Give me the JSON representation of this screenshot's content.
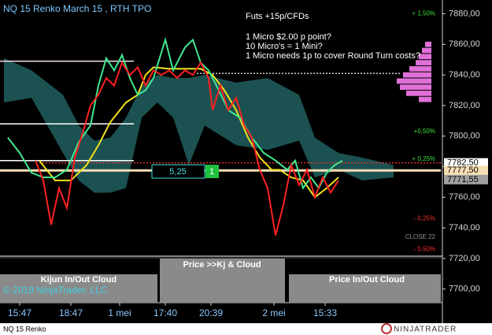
{
  "chart_data": {
    "type": "line",
    "title": "NQ 15 Renko March 15 , RTH TPO",
    "annotations": [
      "Futs +15p/CFDs",
      "1 Micro $2.00 p point?",
      "10 Micro's = 1 Mini?",
      "1 Micro needs 1p to cover Round Turn costs?"
    ],
    "xlim": [
      0,
      112
    ],
    "xticks": [
      {
        "value": 5,
        "label": "15:47"
      },
      {
        "value": 18,
        "label": "18:47"
      },
      {
        "value": 30.4,
        "label": "1 mei"
      },
      {
        "value": 42,
        "label": "17:40"
      },
      {
        "value": 53.6,
        "label": "20:39"
      },
      {
        "value": 69.6,
        "label": "2 mei"
      },
      {
        "value": 82.6,
        "label": "15:33"
      }
    ],
    "ylim": [
      7689,
      7889
    ],
    "yticks": [
      {
        "value": 7700,
        "label": "7700,00"
      },
      {
        "value": 7720,
        "label": "7720,00"
      },
      {
        "value": 7740,
        "label": "7740,00"
      },
      {
        "value": 7760,
        "label": "7760,00"
      },
      {
        "value": 7780,
        "label": "7780,00"
      },
      {
        "value": 7800,
        "label": "7800,00"
      },
      {
        "value": 7820,
        "label": "7820,00"
      },
      {
        "value": 7840,
        "label": "7840,00"
      },
      {
        "value": 7860,
        "label": "7860,00"
      },
      {
        "value": 7880,
        "label": "7880,00"
      }
    ],
    "cloud": {
      "color": "#1f5a5a",
      "x": [
        1,
        8,
        16,
        20,
        24,
        28,
        32,
        36,
        40,
        44,
        48,
        52,
        60,
        68,
        76,
        80,
        86,
        92,
        100
      ],
      "upper": [
        7851,
        7843,
        7827,
        7807,
        7797,
        7799,
        7812,
        7833,
        7840,
        7838,
        7838,
        7840,
        7835,
        7838,
        7827,
        7799,
        7789,
        7786,
        7781
      ],
      "lower": [
        7822,
        7825,
        7789,
        7771,
        7763,
        7763,
        7766,
        7812,
        7822,
        7812,
        7781,
        7807,
        7794,
        7791,
        7797,
        7773,
        7778,
        7771,
        7773
      ]
    },
    "profile": {
      "color": "#e070d8",
      "levels": [
        7860,
        7856,
        7852,
        7848,
        7844,
        7840,
        7836,
        7832,
        7828,
        7824
      ],
      "sizes": [
        2,
        3,
        4,
        5,
        7,
        9,
        11,
        10,
        8,
        4
      ]
    },
    "hlines": [
      {
        "value": 7849,
        "x": [
          0,
          34
        ],
        "color": "#f4e0ee",
        "dash": false
      },
      {
        "value": 7808,
        "x": [
          0,
          34
        ],
        "color": "#ffffff",
        "dash": false
      },
      {
        "value": 7784,
        "x": [
          0,
          34
        ],
        "color": "#ffffff",
        "dash": false
      },
      {
        "value": 7841,
        "x": [
          50,
          102
        ],
        "color": "#ffffff",
        "dash": true
      },
      {
        "value": 7782.5,
        "x": [
          10,
          112
        ],
        "color": "#ff3030",
        "dash": true
      },
      {
        "value": 7777.5,
        "x": [
          0,
          112
        ],
        "color": "#f5deb3",
        "dash": false
      }
    ],
    "series": [
      {
        "color": "#f0e020",
        "x": [
          10,
          14,
          18,
          22,
          25,
          28,
          32,
          35,
          37,
          39,
          43,
          47,
          51,
          54,
          57,
          60,
          63,
          66,
          69,
          71,
          74,
          77,
          80,
          83,
          86
        ],
        "values": [
          7784,
          7771,
          7771,
          7781,
          7794,
          7809,
          7822,
          7827,
          7840,
          7845,
          7844,
          7844,
          7844,
          7840,
          7830,
          7817,
          7799,
          7786,
          7778,
          7778,
          7773,
          7771,
          7760,
          7766,
          7773
        ]
      },
      {
        "color": "#40e890",
        "x": [
          2,
          5,
          8,
          11,
          14,
          17,
          20,
          23,
          25,
          27,
          29,
          31,
          33,
          35,
          37,
          39,
          42,
          44,
          47,
          49,
          51,
          53,
          55,
          58,
          61,
          64,
          67,
          70,
          73,
          75,
          77,
          79,
          81,
          83,
          85,
          87
        ],
        "values": [
          7799,
          7789,
          7776,
          7773,
          7773,
          7778,
          7796,
          7807,
          7833,
          7851,
          7843,
          7853,
          7838,
          7827,
          7830,
          7838,
          7863,
          7843,
          7858,
          7863,
          7848,
          7843,
          7833,
          7817,
          7812,
          7799,
          7789,
          7784,
          7778,
          7784,
          7766,
          7773,
          7766,
          7776,
          7781,
          7784
        ]
      },
      {
        "color": "#ff2020",
        "x": [
          9,
          11,
          13,
          15,
          17,
          19,
          21,
          23,
          25,
          27,
          29,
          31,
          33,
          35,
          37,
          39,
          41,
          43,
          45,
          47,
          49,
          51,
          53,
          54,
          56,
          58,
          60,
          62,
          64,
          66,
          68,
          70,
          72,
          74,
          76,
          78,
          80,
          82,
          84,
          86
        ],
        "values": [
          7784,
          7771,
          7742,
          7766,
          7753,
          7786,
          7802,
          7820,
          7827,
          7838,
          7833,
          7848,
          7840,
          7845,
          7833,
          7843,
          7840,
          7843,
          7838,
          7843,
          7840,
          7848,
          7838,
          7817,
          7833,
          7817,
          7825,
          7807,
          7799,
          7778,
          7766,
          7735,
          7755,
          7781,
          7768,
          7778,
          7760,
          7773,
          7763,
          7771
        ]
      }
    ],
    "price_markers": [
      {
        "value": 7782.5,
        "label": "7782,50",
        "color": "#ffffff"
      },
      {
        "value": 7777.5,
        "label": "7777,50",
        "color": "#f5deb3"
      },
      {
        "value": 7771.55,
        "label": "7771,55",
        "color": "#a0a0a0"
      }
    ],
    "level_labels": [
      {
        "price": 7880,
        "text": "+ 1,50%",
        "color": "#40e040"
      },
      {
        "price": 7803,
        "text": "+0,50%",
        "color": "#40e040"
      },
      {
        "price": 7785,
        "text": "+ 0,25%",
        "color": "#40e040"
      },
      {
        "price": 7734,
        "text": "CLOSE 22",
        "color": "#909090"
      },
      {
        "price": 7746,
        "text": "- 0,25%",
        "color": "#ff3030"
      },
      {
        "price": 7726,
        "text": "- 0,50%",
        "color": "#ff3030"
      }
    ],
    "box": {
      "text": "5,25",
      "count": "1"
    },
    "panels": [
      "Kijun In/Out Cloud",
      "Price >>Kj & Cloud",
      "Price In/Out Cloud"
    ],
    "copyright": "© 2019 NinjaTrader, LLC",
    "instrument": "NQ 15 Renko",
    "logo": "NINJATRADER"
  }
}
